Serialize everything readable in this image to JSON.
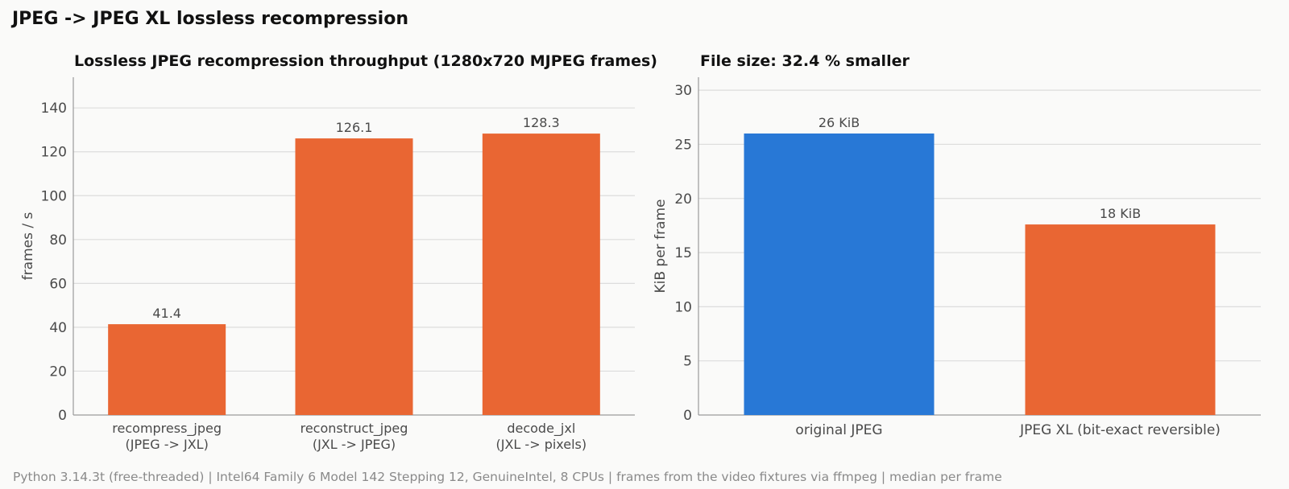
{
  "suptitle": "JPEG -> JPEG XL lossless recompression",
  "footer": "Python 3.14.3t (free-threaded) | Intel64 Family 6 Model 142 Stepping 12, GenuineIntel, 8 CPUs | frames from the video fixtures via ffmpeg | median per frame",
  "chart_data": [
    {
      "type": "bar",
      "title": "Lossless JPEG recompression throughput (1280x720 MJPEG frames)",
      "xlabel": "",
      "ylabel": "frames / s",
      "categories": [
        [
          "recompress_jpeg",
          "(JPEG -> JXL)"
        ],
        [
          "reconstruct_jpeg",
          "(JXL -> JPEG)"
        ],
        [
          "decode_jxl",
          "(JXL -> pixels)"
        ]
      ],
      "values": [
        41.4,
        126.1,
        128.3
      ],
      "data_labels": [
        "41.4",
        "126.1",
        "128.3"
      ],
      "colors": [
        "#e96633",
        "#e96633",
        "#e96633"
      ],
      "ylim": [
        0,
        154
      ],
      "yticks": [
        0,
        20,
        40,
        60,
        80,
        100,
        120,
        140
      ],
      "grid": true
    },
    {
      "type": "bar",
      "title": "File size: 32.4 % smaller",
      "xlabel": "",
      "ylabel": "KiB per frame",
      "categories": [
        [
          "original JPEG"
        ],
        [
          "JPEG XL (bit-exact reversible)"
        ]
      ],
      "values": [
        26.0,
        17.6
      ],
      "data_labels": [
        "26 KiB",
        "18 KiB"
      ],
      "colors": [
        "#2878d6",
        "#e96633"
      ],
      "ylim": [
        0,
        31.2
      ],
      "yticks": [
        0,
        5,
        10,
        15,
        20,
        25,
        30
      ],
      "grid": true
    }
  ]
}
